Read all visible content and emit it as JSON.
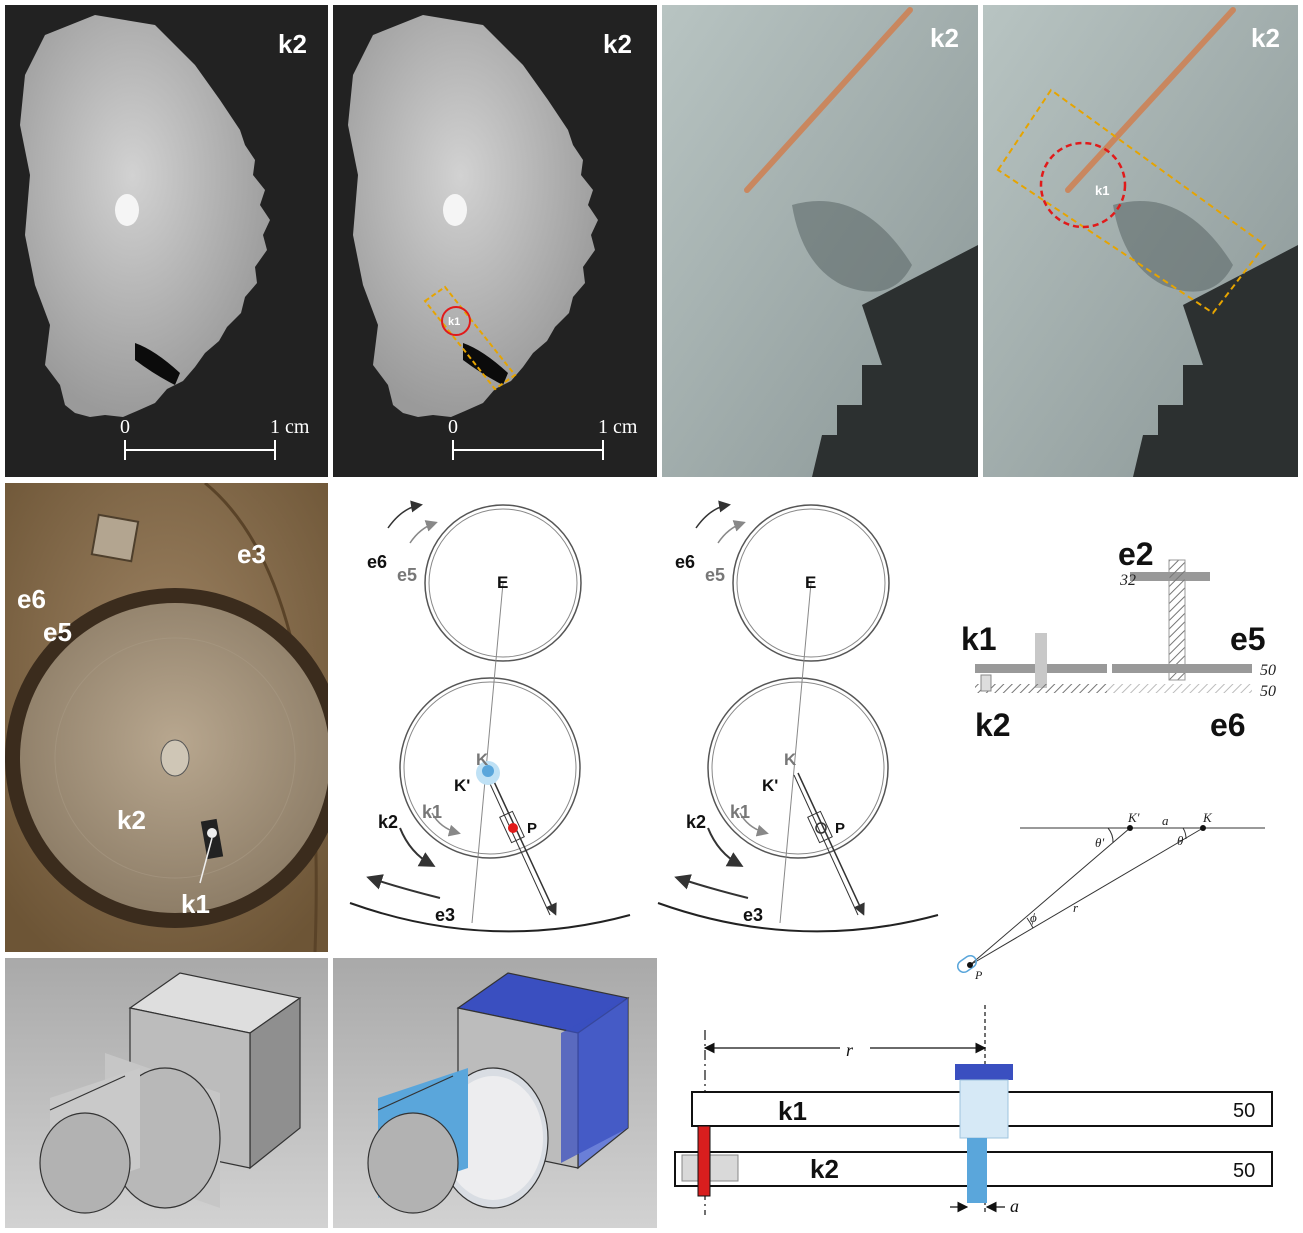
{
  "figure": {
    "ct_panels": {
      "gear_label": "k2",
      "pin_label": "k1",
      "scale_start": "0",
      "scale_end": "1 cm"
    },
    "photo_panels": {
      "gear_label": "k2",
      "pin_label": "k1"
    },
    "mechanism_photo": {
      "labels": {
        "e3": "e3",
        "e6": "e6",
        "e5": "e5",
        "k2": "k2",
        "k1": "k1"
      }
    },
    "gear_diagram": {
      "labels": {
        "e6": "e6",
        "e5": "e5",
        "E": "E",
        "K": "K",
        "K_prime": "K'",
        "P": "P",
        "k2": "k2",
        "k1": "k1",
        "e3": "e3"
      }
    },
    "train_diagram": {
      "labels": {
        "e2": "e2",
        "k1": "k1",
        "e5": "e5",
        "k2": "k2",
        "e6": "e6"
      },
      "teeth": {
        "e2": "32",
        "k1": "50",
        "k2": "50",
        "e5": "50",
        "e6": "50"
      }
    },
    "angle_diagram": {
      "labels": {
        "K_prime": "K'",
        "K": "K",
        "a": "a",
        "theta_prime": "θ'",
        "theta": "θ",
        "phi": "ϕ",
        "r": "r",
        "P": "P"
      }
    },
    "cross_section": {
      "labels": {
        "r": "r",
        "k1": "k1",
        "k2": "k2",
        "a": "a"
      },
      "teeth": {
        "k1": "50",
        "k2": "50"
      }
    },
    "colors": {
      "ct_background": "#1e1e1e",
      "ct_gear": "#b9b9b9",
      "marker_red": "#e11a1a",
      "marker_orange": "#e6a400",
      "pointer_copper": "#c9875f",
      "photo_bronze": "#8a6d4a",
      "pin_blue": "#3a4fc0",
      "pin_light_blue": "#5aa6db",
      "slot_red": "#d81e1e"
    }
  }
}
